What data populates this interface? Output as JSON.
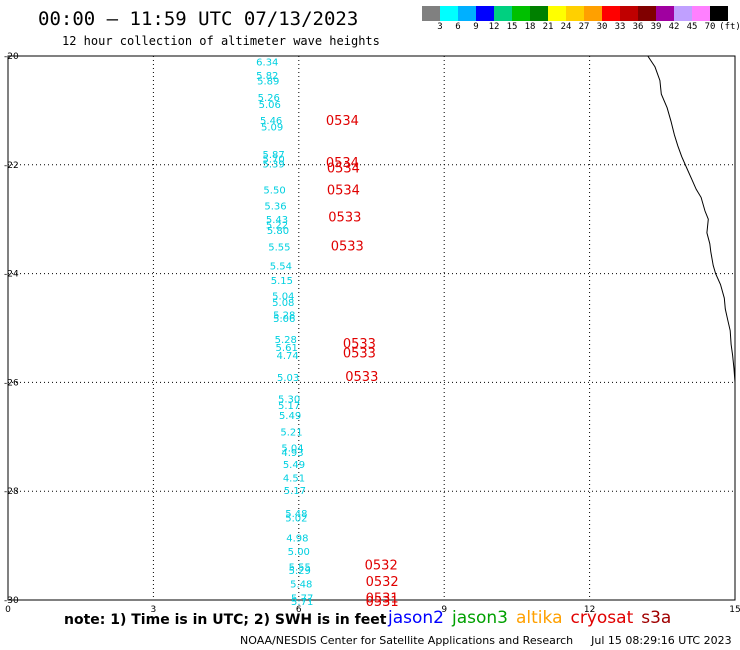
{
  "header": {
    "title": "00:00 – 11:59 UTC 07/13/2023",
    "subtitle": "12 hour collection of altimeter wave heights"
  },
  "colorbar": {
    "colors": [
      "#808080",
      "#00ffff",
      "#00b0ff",
      "#0000ff",
      "#00d080",
      "#00c000",
      "#008000",
      "#ffff00",
      "#ffd000",
      "#ffa000",
      "#ff0000",
      "#c00000",
      "#800000",
      "#a000a0",
      "#c0a0ff",
      "#ff80ff",
      "#000000"
    ],
    "labels": [
      "3",
      "6",
      "9",
      "12",
      "15",
      "18",
      "21",
      "24",
      "27",
      "30",
      "33",
      "36",
      "39",
      "42",
      "45",
      "70",
      "(ft)"
    ]
  },
  "axes": {
    "x_ticks": [
      "0",
      "3",
      "6",
      "9",
      "12",
      "15"
    ],
    "x_values": [
      0,
      3,
      6,
      9,
      12,
      15
    ],
    "y_ticks": [
      "-20",
      "-22",
      "-24",
      "-26",
      "-28",
      "-30"
    ],
    "y_values": [
      -20,
      -22,
      -24,
      -26,
      -28,
      -30
    ],
    "xlim": [
      0,
      15
    ],
    "ylim": [
      -30,
      -20
    ]
  },
  "observations": [
    {
      "lon": 5.35,
      "lat": -20.1,
      "v": "6.34"
    },
    {
      "lon": 5.35,
      "lat": -20.35,
      "v": "5.82"
    },
    {
      "lon": 5.37,
      "lat": -20.45,
      "v": "5.89"
    },
    {
      "lon": 5.38,
      "lat": -20.75,
      "v": "5.26"
    },
    {
      "lon": 5.4,
      "lat": -20.88,
      "v": "5.06"
    },
    {
      "lon": 5.43,
      "lat": -21.18,
      "v": "5.46"
    },
    {
      "lon": 5.45,
      "lat": -21.3,
      "v": "5.09"
    },
    {
      "lon": 5.48,
      "lat": -21.8,
      "v": "5.87"
    },
    {
      "lon": 5.48,
      "lat": -21.88,
      "v": "5.70"
    },
    {
      "lon": 5.48,
      "lat": -21.98,
      "v": "5.39"
    },
    {
      "lon": 5.5,
      "lat": -22.45,
      "v": "5.50"
    },
    {
      "lon": 5.52,
      "lat": -22.75,
      "v": "5.36"
    },
    {
      "lon": 5.55,
      "lat": -23.0,
      "v": "5.43"
    },
    {
      "lon": 5.55,
      "lat": -23.1,
      "v": "5.22"
    },
    {
      "lon": 5.57,
      "lat": -23.2,
      "v": "5.80"
    },
    {
      "lon": 5.6,
      "lat": -23.5,
      "v": "5.55"
    },
    {
      "lon": 5.63,
      "lat": -23.85,
      "v": "5.54"
    },
    {
      "lon": 5.65,
      "lat": -24.12,
      "v": "5.15"
    },
    {
      "lon": 5.68,
      "lat": -24.4,
      "v": "5.04"
    },
    {
      "lon": 5.68,
      "lat": -24.52,
      "v": "5.08"
    },
    {
      "lon": 5.7,
      "lat": -24.75,
      "v": "5.28"
    },
    {
      "lon": 5.7,
      "lat": -24.82,
      "v": "5.06"
    },
    {
      "lon": 5.73,
      "lat": -25.2,
      "v": "5.28"
    },
    {
      "lon": 5.75,
      "lat": -25.35,
      "v": "5.61"
    },
    {
      "lon": 5.77,
      "lat": -25.5,
      "v": "4.74"
    },
    {
      "lon": 5.78,
      "lat": -25.9,
      "v": "5.03"
    },
    {
      "lon": 5.8,
      "lat": -26.3,
      "v": "5.30"
    },
    {
      "lon": 5.8,
      "lat": -26.42,
      "v": "5.17"
    },
    {
      "lon": 5.82,
      "lat": -26.6,
      "v": "5.49"
    },
    {
      "lon": 5.85,
      "lat": -26.9,
      "v": "5.21"
    },
    {
      "lon": 5.87,
      "lat": -27.2,
      "v": "5.04"
    },
    {
      "lon": 5.87,
      "lat": -27.28,
      "v": "4.93"
    },
    {
      "lon": 5.9,
      "lat": -27.5,
      "v": "5.49"
    },
    {
      "lon": 5.9,
      "lat": -27.75,
      "v": "4.51"
    },
    {
      "lon": 5.92,
      "lat": -27.98,
      "v": "5.17"
    },
    {
      "lon": 5.95,
      "lat": -28.4,
      "v": "5.48"
    },
    {
      "lon": 5.95,
      "lat": -28.48,
      "v": "5.02"
    },
    {
      "lon": 5.97,
      "lat": -28.85,
      "v": "4.98"
    },
    {
      "lon": 6.0,
      "lat": -29.1,
      "v": "5.00"
    },
    {
      "lon": 6.02,
      "lat": -29.38,
      "v": "5.55"
    },
    {
      "lon": 6.02,
      "lat": -29.45,
      "v": "5.29"
    },
    {
      "lon": 6.05,
      "lat": -29.7,
      "v": "5.48"
    },
    {
      "lon": 6.07,
      "lat": -29.95,
      "v": "5.77"
    },
    {
      "lon": 6.07,
      "lat": -30.02,
      "v": "5.71"
    }
  ],
  "passes": [
    {
      "lon": 6.9,
      "lat": -21.18,
      "t": "0534"
    },
    {
      "lon": 6.9,
      "lat": -21.95,
      "t": "0534"
    },
    {
      "lon": 6.92,
      "lat": -22.05,
      "t": "0534"
    },
    {
      "lon": 6.92,
      "lat": -22.45,
      "t": "0534"
    },
    {
      "lon": 6.95,
      "lat": -22.95,
      "t": "0533"
    },
    {
      "lon": 7.0,
      "lat": -23.48,
      "t": "0533"
    },
    {
      "lon": 7.25,
      "lat": -25.28,
      "t": "0533"
    },
    {
      "lon": 7.25,
      "lat": -25.45,
      "t": "0533"
    },
    {
      "lon": 7.3,
      "lat": -25.88,
      "t": "0533"
    },
    {
      "lon": 7.7,
      "lat": -29.35,
      "t": "0532"
    },
    {
      "lon": 7.72,
      "lat": -29.65,
      "t": "0532"
    },
    {
      "lon": 7.72,
      "lat": -29.95,
      "t": "0531"
    },
    {
      "lon": 7.72,
      "lat": -30.02,
      "t": "0531"
    }
  ],
  "coastline": [
    [
      13.2,
      -20.0
    ],
    [
      13.35,
      -20.2
    ],
    [
      13.45,
      -20.45
    ],
    [
      13.48,
      -20.7
    ],
    [
      13.6,
      -20.95
    ],
    [
      13.68,
      -21.2
    ],
    [
      13.75,
      -21.45
    ],
    [
      13.82,
      -21.65
    ],
    [
      13.9,
      -21.85
    ],
    [
      14.0,
      -22.05
    ],
    [
      14.1,
      -22.25
    ],
    [
      14.2,
      -22.45
    ],
    [
      14.3,
      -22.6
    ],
    [
      14.38,
      -22.85
    ],
    [
      14.45,
      -23.0
    ],
    [
      14.42,
      -23.25
    ],
    [
      14.48,
      -23.45
    ],
    [
      14.5,
      -23.6
    ],
    [
      14.55,
      -23.85
    ],
    [
      14.6,
      -24.0
    ],
    [
      14.7,
      -24.2
    ],
    [
      14.78,
      -24.45
    ],
    [
      14.8,
      -24.65
    ],
    [
      14.85,
      -24.85
    ],
    [
      14.9,
      -25.05
    ],
    [
      14.92,
      -25.3
    ],
    [
      14.95,
      -25.5
    ],
    [
      14.98,
      -25.75
    ],
    [
      15.0,
      -26.0
    ],
    [
      15.0,
      -26.2
    ]
  ],
  "notes": {
    "text": "note: 1) Time is in UTC; 2) SWH is in feet"
  },
  "legend": [
    {
      "label": "jason2",
      "color": "#0000ff"
    },
    {
      "label": "jason3",
      "color": "#00a000"
    },
    {
      "label": "altika",
      "color": "#ffa000"
    },
    {
      "label": "cryosat",
      "color": "#e00000"
    },
    {
      "label": "s3a",
      "color": "#a00000"
    }
  ],
  "footer": {
    "center": "NOAA/NESDIS Center for Satellite Applications and Research",
    "timestamp": "Jul 15 08:29:16 UTC 2023"
  }
}
